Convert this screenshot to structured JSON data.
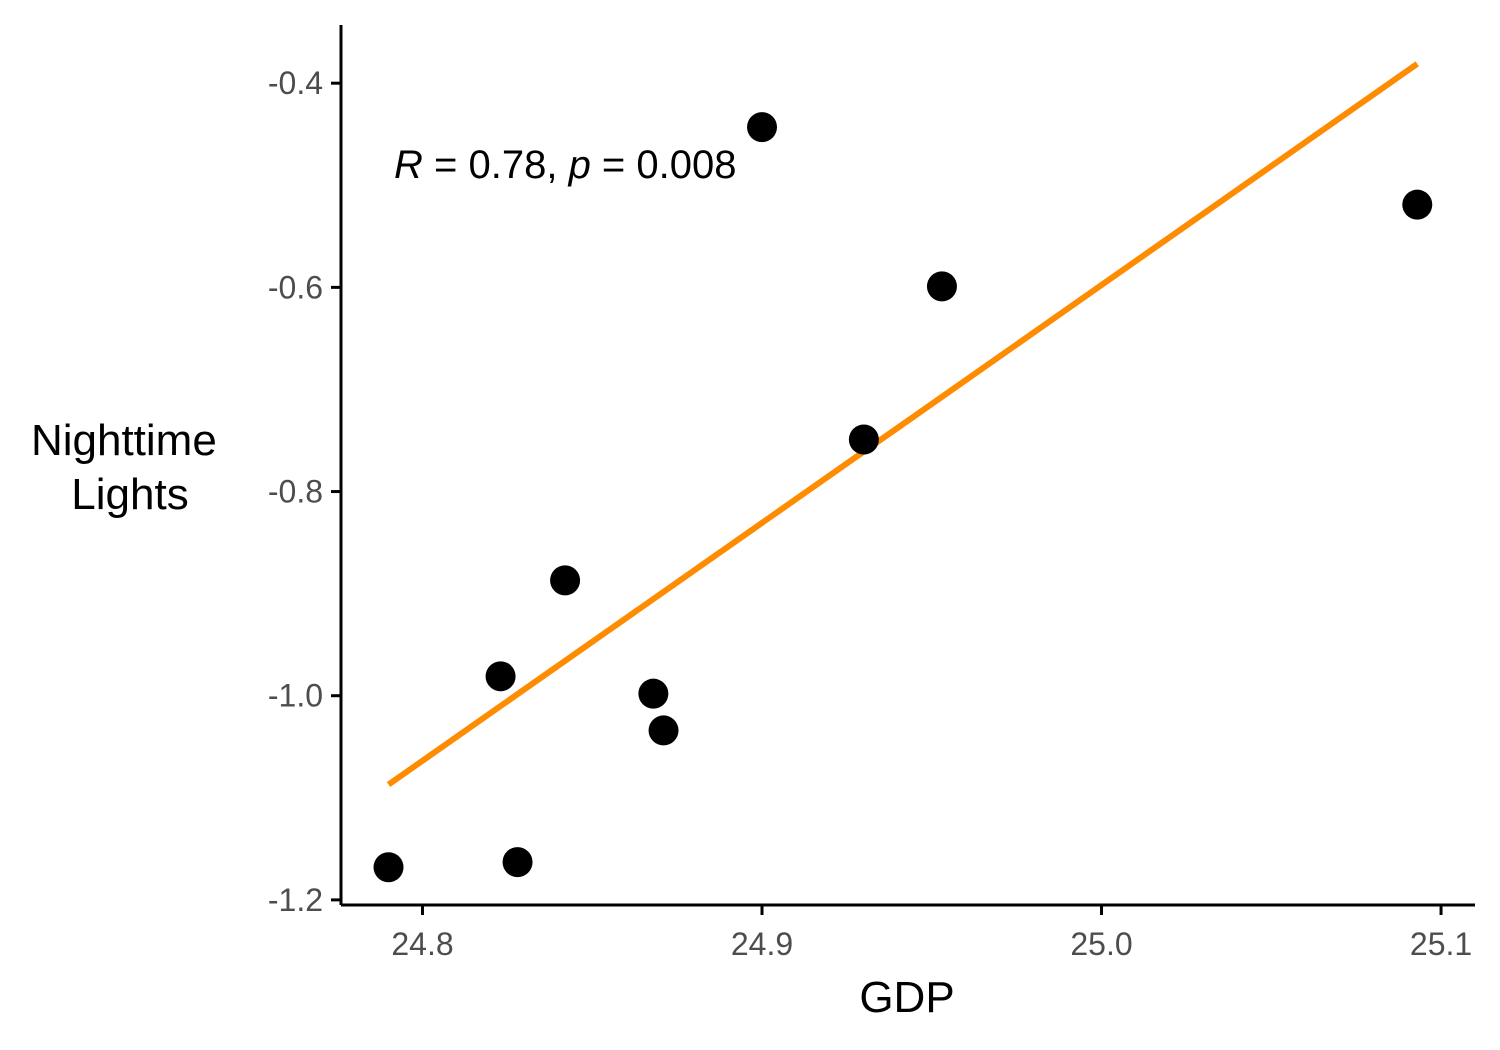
{
  "chart_data": {
    "type": "scatter",
    "title": "",
    "xlabel": "GDP",
    "ylabel_lines": [
      "Nighttime",
      "Lights"
    ],
    "xlim": [
      24.776,
      25.11
    ],
    "ylim": [
      -1.205,
      -0.343
    ],
    "x_ticks": [
      24.8,
      24.9,
      25.0,
      25.1
    ],
    "x_tick_labels": [
      "24.8",
      "24.9",
      "25.0",
      "25.1"
    ],
    "y_ticks": [
      -0.4,
      -0.6,
      -0.8,
      -1.0,
      -1.2
    ],
    "y_tick_labels": [
      "-0.4",
      "-0.6",
      "-0.8",
      "-1.0",
      "-1.2"
    ],
    "grid": false,
    "points": [
      {
        "x": 24.79,
        "y": -1.168
      },
      {
        "x": 24.828,
        "y": -1.163
      },
      {
        "x": 24.823,
        "y": -0.981
      },
      {
        "x": 24.842,
        "y": -0.887
      },
      {
        "x": 24.868,
        "y": -0.998
      },
      {
        "x": 24.871,
        "y": -1.034
      },
      {
        "x": 24.9,
        "y": -0.443
      },
      {
        "x": 24.93,
        "y": -0.749
      },
      {
        "x": 24.953,
        "y": -0.599
      },
      {
        "x": 25.093,
        "y": -0.519
      }
    ],
    "fit_line": {
      "x": [
        24.79,
        25.093
      ],
      "y": [
        -1.087,
        -0.381
      ]
    },
    "annotation": {
      "r_symbol": "R",
      "r_text": " = 0.78, ",
      "p_symbol": "p",
      "p_text": " = 0.008"
    },
    "colors": {
      "points": "#000000",
      "fit_line": "#ff8c00",
      "axis": "#000000",
      "tick_label": "#4d4d4d"
    }
  }
}
